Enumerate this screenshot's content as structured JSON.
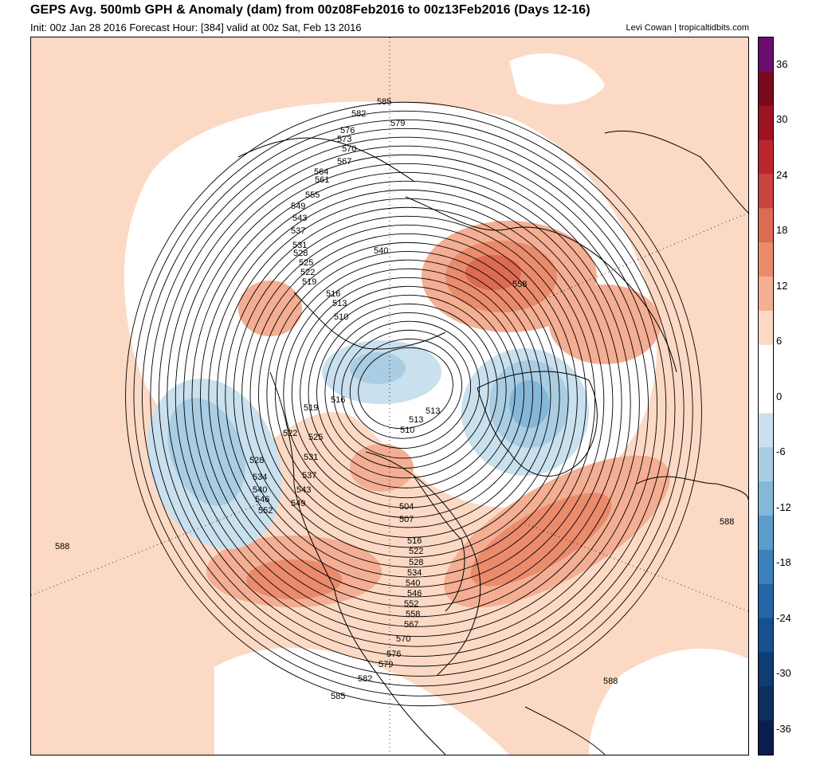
{
  "header": {
    "title": "GEPS Avg. 500mb GPH & Anomaly (dam) from 00z08Feb2016 to 00z13Feb2016 (Days 12-16)",
    "subtitle": "Init: 00z Jan 28 2016   Forecast Hour: [384]   valid at 00z Sat, Feb 13 2016",
    "credit": "Levi Cowan | tropicaltidbits.com"
  },
  "colors": {
    "background_anomaly": "#fcd9c4",
    "coast": "#000000",
    "contour": "#000000"
  },
  "colorbar": {
    "ticks": [
      "36",
      "30",
      "24",
      "18",
      "12",
      "6",
      "0",
      "-6",
      "-12",
      "-18",
      "-24",
      "-30",
      "-36"
    ],
    "colors": [
      "#6a0d6e",
      "#7a0b1e",
      "#9c1324",
      "#b9272d",
      "#c9443e",
      "#dd6a53",
      "#ea8b6c",
      "#f4ae93",
      "#fcd9c4",
      "#ffffff",
      "#ffffff",
      "#c9e0ee",
      "#a9cde3",
      "#85b7d8",
      "#5a9cca",
      "#3b82bd",
      "#2466a8",
      "#174f8f",
      "#103c74",
      "#0c2f5e",
      "#0a1f4d"
    ]
  },
  "map": {
    "height_contour_labels": [
      "585",
      "582",
      "579",
      "576",
      "573",
      "570",
      "567",
      "564",
      "561",
      "555",
      "549",
      "543",
      "537",
      "531",
      "528",
      "525",
      "522",
      "519",
      "516",
      "513",
      "510",
      "540",
      "558",
      "504",
      "507",
      "534",
      "546",
      "552",
      "588"
    ]
  },
  "chart_data": {
    "type": "heatmap",
    "title": "GEPS Avg. 500mb GPH & Anomaly (dam) from 00z08Feb2016 to 00z13Feb2016 (Days 12-16)",
    "colorbar_ticks": [
      36,
      30,
      24,
      18,
      12,
      6,
      0,
      -6,
      -12,
      -18,
      -24,
      -30,
      -36
    ],
    "colorbar_range": [
      -39,
      39
    ],
    "contour_levels_dam": [
      504,
      507,
      510,
      513,
      516,
      519,
      522,
      525,
      528,
      531,
      534,
      537,
      540,
      543,
      546,
      549,
      552,
      555,
      558,
      561,
      564,
      567,
      570,
      573,
      576,
      579,
      582,
      585,
      588
    ]
  }
}
